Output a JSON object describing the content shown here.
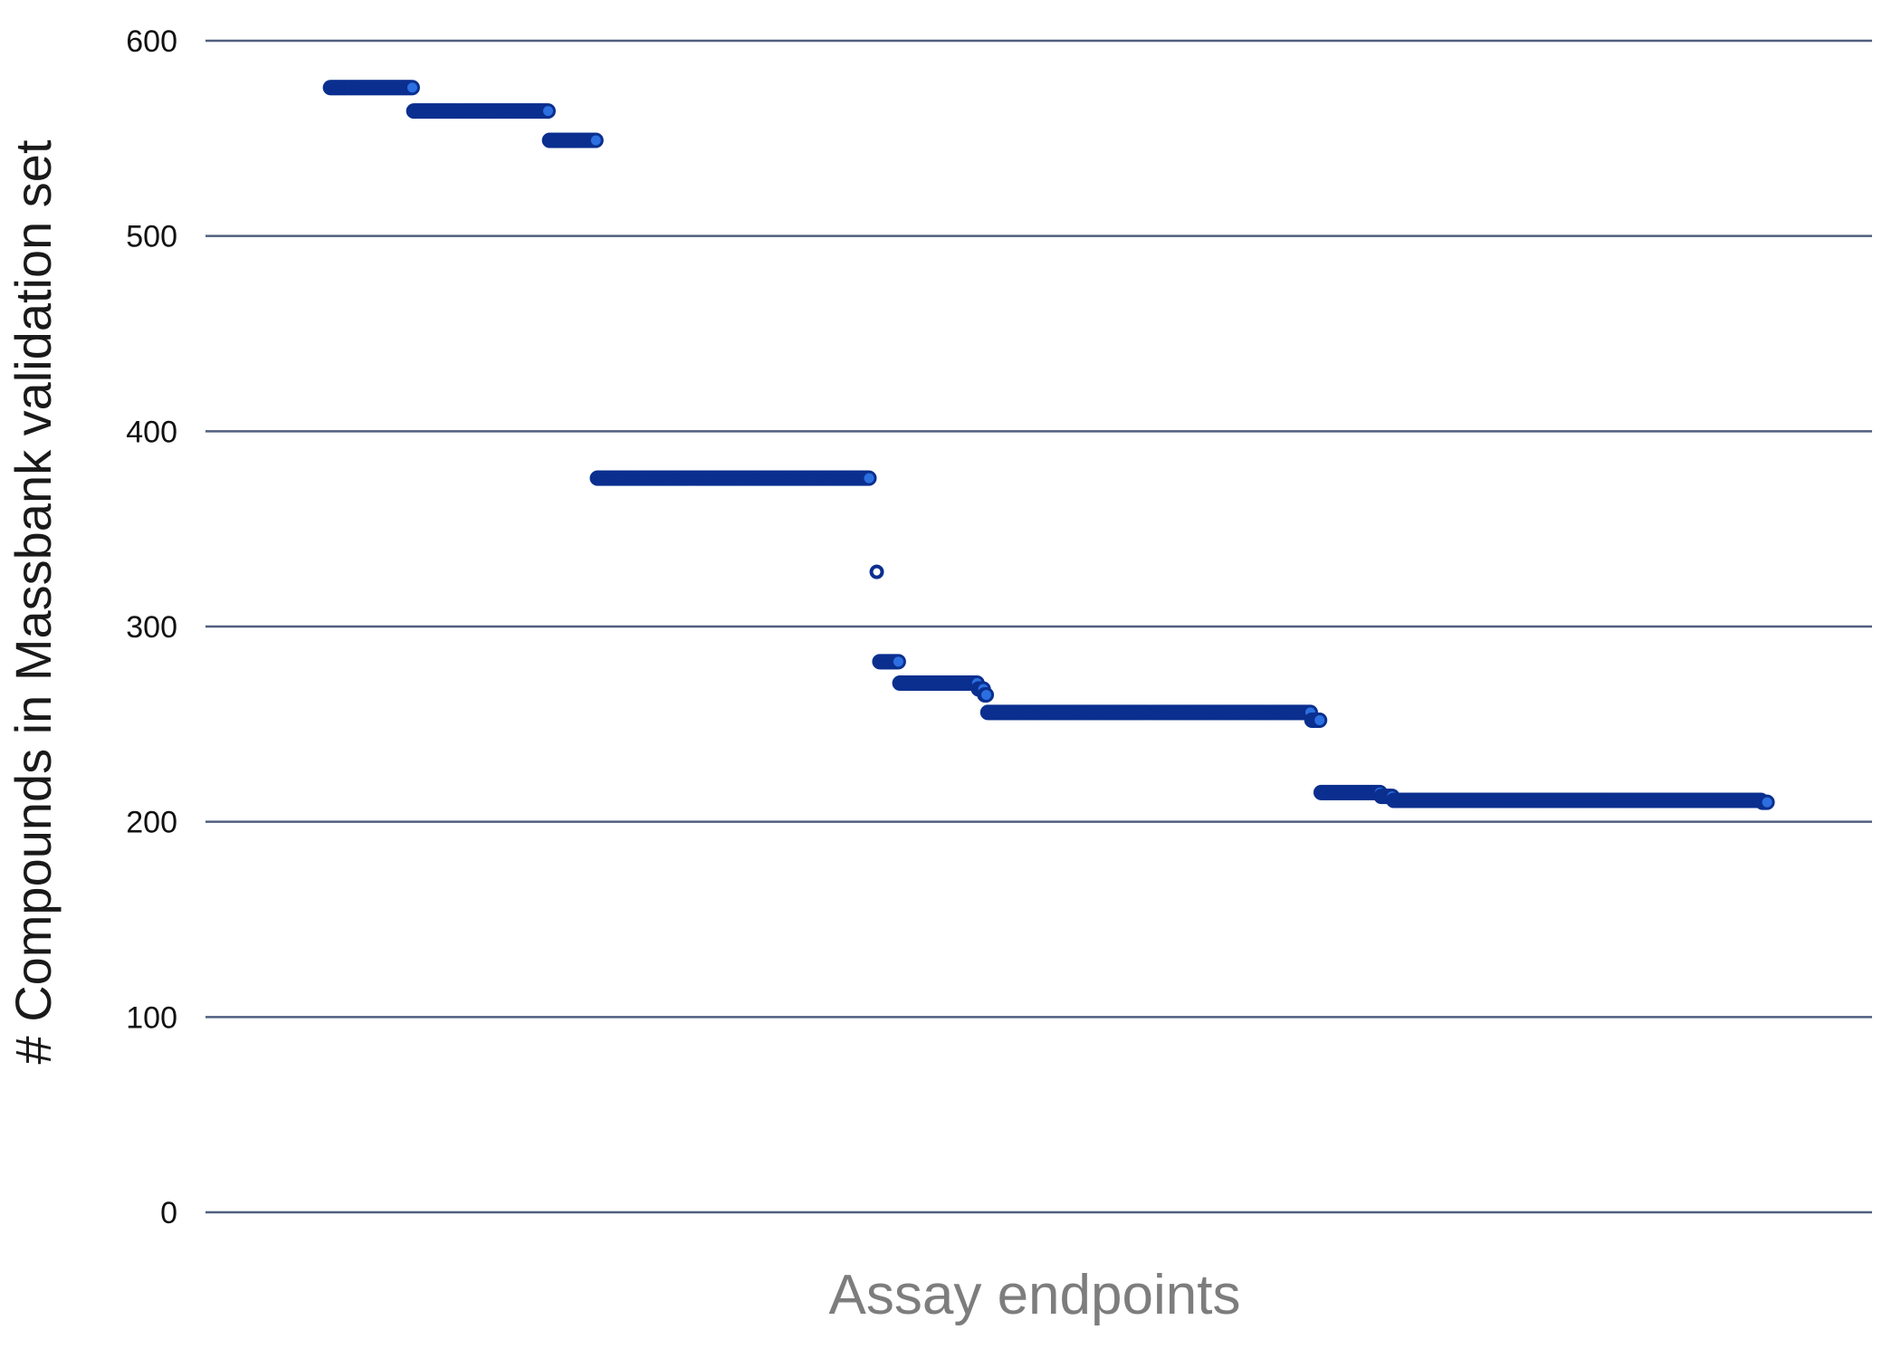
{
  "chart_data": {
    "type": "scatter",
    "title": "",
    "xlabel": "Assay endpoints",
    "ylabel": "# Compounds in Massbank validation set",
    "ylim": [
      0,
      600
    ],
    "yticks": [
      "0",
      "100",
      "200",
      "300",
      "400",
      "500",
      "600"
    ],
    "grid": "horizontal",
    "colors": {
      "marker_fill": "#2c6fe0",
      "marker_edge": "#0a2f8f",
      "grid": "#4f5f7f"
    },
    "series": [
      {
        "name": "",
        "segments": [
          {
            "x_start": 1,
            "x_end": 54,
            "y": 576
          },
          {
            "x_start": 55,
            "x_end": 142,
            "y": 564
          },
          {
            "x_start": 143,
            "x_end": 173,
            "y": 549
          },
          {
            "x_start": 174,
            "x_end": 350,
            "y": 376
          },
          {
            "x_start": 355,
            "x_end": 355,
            "y": 328
          },
          {
            "x_start": 357,
            "x_end": 369,
            "y": 282
          },
          {
            "x_start": 370,
            "x_end": 420,
            "y": 271
          },
          {
            "x_start": 421,
            "x_end": 424,
            "y": 268
          },
          {
            "x_start": 425,
            "x_end": 426,
            "y": 265
          },
          {
            "x_start": 427,
            "x_end": 636,
            "y": 256
          },
          {
            "x_start": 637,
            "x_end": 642,
            "y": 252
          },
          {
            "x_start": 643,
            "x_end": 681,
            "y": 215
          },
          {
            "x_start": 682,
            "x_end": 689,
            "y": 213
          },
          {
            "x_start": 690,
            "x_end": 928,
            "y": 211
          },
          {
            "x_start": 929,
            "x_end": 932,
            "y": 210
          }
        ]
      }
    ]
  }
}
